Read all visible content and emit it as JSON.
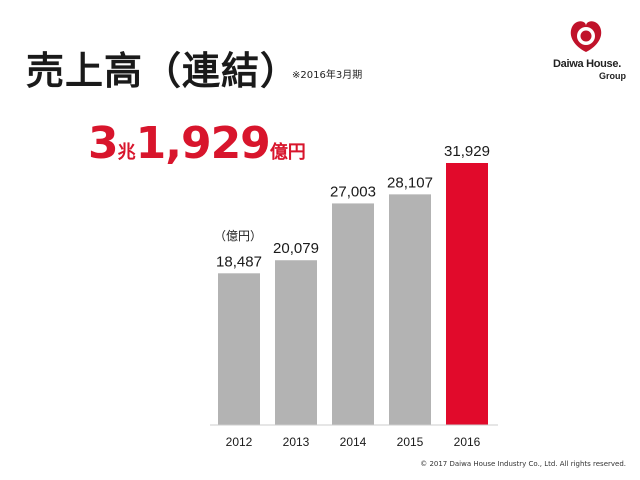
{
  "header": {
    "title": "売上高（連結）",
    "subtitle": "※2016年3月期"
  },
  "headline": {
    "part1": "3",
    "part2": "兆",
    "part3": "1,929",
    "part4": "億円"
  },
  "logo": {
    "brand": "Daiwa House.",
    "group": "Group",
    "colors": {
      "ring_outer": "#c0122a",
      "ring_inner": "#ffffff"
    }
  },
  "chart_data": {
    "type": "bar",
    "categories": [
      "2012",
      "2013",
      "2014",
      "2015",
      "2016"
    ],
    "values": [
      18487,
      20079,
      27003,
      28107,
      31929
    ],
    "value_labels": [
      "18,487",
      "20,079",
      "27,003",
      "28,107",
      "31,929"
    ],
    "unit_label": "（億円）",
    "ylim": [
      0,
      31929
    ],
    "grid": false,
    "legend": "none",
    "colors": {
      "default": "#b3b3b3",
      "highlight": "#e10a2b"
    },
    "highlight_index": 4
  },
  "footer": {
    "copyright": "© 2017 Daiwa House Industry Co., Ltd. All rights reserved."
  }
}
